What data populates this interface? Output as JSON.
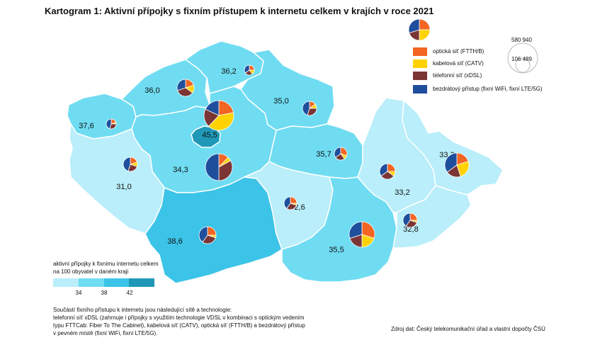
{
  "title": "Kartogram 1: Aktivní přípojky s fixním přístupem k internetu celkem v krajích v roce 2021",
  "colors": {
    "ftth": "#f26522",
    "catv": "#ffd200",
    "xdsl": "#7b3535",
    "wireless": "#1f4e9c",
    "class_colors": [
      "#b9eefa",
      "#6fdcf2",
      "#3cc3e8",
      "#1f98b8"
    ],
    "border": "#ffffff"
  },
  "legend": {
    "series": [
      {
        "key": "ftth",
        "label": "optická síť (FTTH/B)"
      },
      {
        "key": "catv",
        "label": "kabelová síť (CATV)"
      },
      {
        "key": "xdsl",
        "label": "telefonní síť (xDSL)"
      },
      {
        "key": "wireless",
        "label": "bezdrátový přístup (fixní WiFi, fixní LTE/5G)"
      }
    ],
    "size_max": "580 940",
    "size_min": "106 489",
    "class_title": "aktivní přípojky k fixnímu internetu celkem na 100 obyvatel v daném kraji",
    "class_breaks": [
      "34",
      "38",
      "42"
    ]
  },
  "regions": [
    {
      "id": "praha",
      "value": "45,5",
      "class": 3
    },
    {
      "id": "stredocesky",
      "value": "34,3",
      "class": 1
    },
    {
      "id": "jihocesky",
      "value": "31,0",
      "class": 0
    },
    {
      "id": "plzensky",
      "value": "31,0",
      "class": 0
    },
    {
      "id": "karlovarsky",
      "value": "37,6",
      "class": 1
    },
    {
      "id": "ustecky",
      "value": "36,0",
      "class": 1
    },
    {
      "id": "liberecky",
      "value": "36,2",
      "class": 1
    },
    {
      "id": "kralovehradecky",
      "value": "35,0",
      "class": 1
    },
    {
      "id": "pardubicky",
      "value": "35,7",
      "class": 1
    },
    {
      "id": "vysocina",
      "value": "32,6",
      "class": 0
    },
    {
      "id": "jihomoravsky",
      "value": "35,5",
      "class": 1
    },
    {
      "id": "olomoucky",
      "value": "33,2",
      "class": 0
    },
    {
      "id": "zlinsky",
      "value": "32,8",
      "class": 0
    },
    {
      "id": "moravskoslezsky",
      "value": "33,3",
      "class": 0
    },
    {
      "id": "plzen_label",
      "value": "38,6",
      "class": 2
    }
  ],
  "notes": [
    "Součástí fixního přístupu k internetu jsou následující sítě a technologie:",
    "telefonní síť xDSL (zahrnuje i přípojky s využitím technologie VDSL v kombinaci s optickým vedením",
    "typu FTTCab: Fiber To The Cabinet), kabelová síť (CATV), optická síť (FTTH/B) a bezdrátový přístup",
    "v pevném místě (fixní WiFi, fixní LTE/5G)."
  ],
  "source": "Zdroj dat: Český telekomunikační úřad a vlastní dopočty ČSÚ"
}
